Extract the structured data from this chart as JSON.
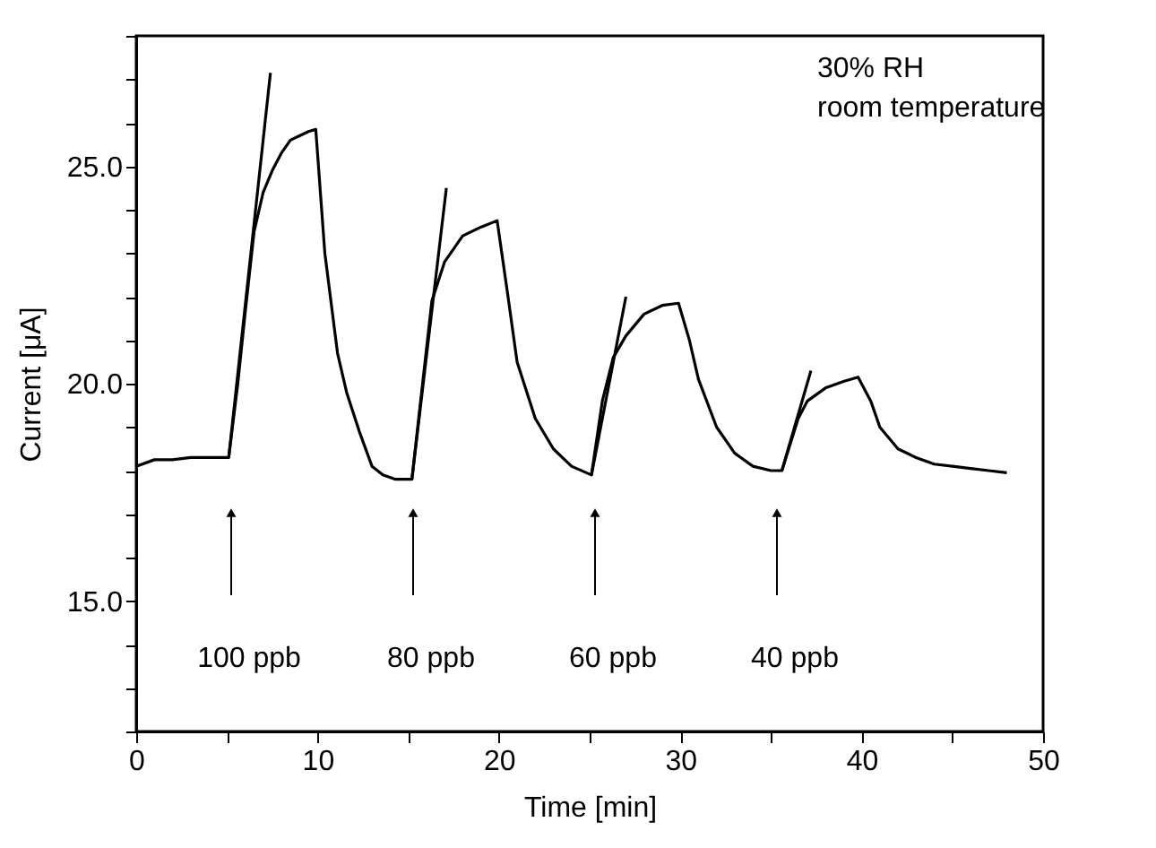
{
  "chart_data": {
    "type": "line",
    "xlabel": "Time [min]",
    "ylabel": "Current [μA]",
    "xlim": [
      0,
      50
    ],
    "ylim": [
      12,
      28
    ],
    "xticks": [
      0,
      {
        "value": 5,
        "label": null
      },
      10,
      {
        "value": 15,
        "label": null
      },
      20,
      {
        "value": 25,
        "label": null
      },
      30,
      {
        "value": 35,
        "label": null
      },
      40,
      {
        "value": 45,
        "label": null
      },
      50
    ],
    "yticks": [
      {
        "value": 12,
        "label": null
      },
      {
        "value": 13,
        "label": null
      },
      {
        "value": 14,
        "label": null
      },
      {
        "value": 15,
        "label": "15.0"
      },
      {
        "value": 16,
        "label": null
      },
      {
        "value": 17,
        "label": null
      },
      {
        "value": 18,
        "label": null
      },
      {
        "value": 19,
        "label": null
      },
      {
        "value": 20,
        "label": "20.0"
      },
      {
        "value": 21,
        "label": null
      },
      {
        "value": 22,
        "label": null
      },
      {
        "value": 23,
        "label": null
      },
      {
        "value": 24,
        "label": null
      },
      {
        "value": 25,
        "label": "25.0"
      },
      {
        "value": 26,
        "label": null
      },
      {
        "value": 27,
        "label": null
      },
      {
        "value": 28,
        "label": null
      }
    ],
    "grid": false,
    "marker": "none",
    "line_style": "solid",
    "series": [
      {
        "color": "#000000",
        "x": [
          0,
          1,
          2,
          3,
          4,
          5.1,
          5.6,
          6.0,
          6.5,
          7.0,
          7.5,
          8.0,
          8.5,
          9.0,
          9.5,
          9.9,
          10.4,
          11.1,
          11.6,
          12.3,
          13.0,
          13.6,
          14.3,
          15.2,
          15.6,
          16.3,
          17.0,
          18.0,
          19.0,
          19.9,
          20.5,
          21.0,
          22.0,
          23.0,
          24.0,
          25.1,
          25.7,
          26.3,
          27.0,
          28.0,
          29.0,
          29.9,
          30.5,
          31.0,
          32.0,
          33.0,
          34.0,
          35.0,
          35.6,
          36.5,
          37.0,
          38.0,
          39.0,
          39.8,
          40.5,
          41.0,
          42.0,
          43.0,
          44.0,
          45.0,
          46.0,
          47.0,
          48.0
        ],
        "values": [
          18.1,
          18.25,
          18.25,
          18.3,
          18.3,
          18.3,
          20.0,
          21.6,
          23.5,
          24.4,
          24.9,
          25.3,
          25.6,
          25.7,
          25.8,
          25.85,
          23.0,
          20.7,
          19.8,
          18.9,
          18.1,
          17.9,
          17.8,
          17.8,
          19.3,
          21.9,
          22.8,
          23.4,
          23.6,
          23.75,
          22.0,
          20.5,
          19.2,
          18.5,
          18.1,
          17.9,
          19.6,
          20.6,
          21.1,
          21.6,
          21.8,
          21.85,
          21.0,
          20.1,
          19.0,
          18.4,
          18.1,
          18.0,
          18.0,
          19.2,
          19.6,
          19.9,
          20.05,
          20.15,
          19.6,
          19.0,
          18.5,
          18.3,
          18.15,
          18.1,
          18.05,
          18.0,
          17.95
        ]
      },
      {
        "type": "line",
        "color": "#000000",
        "x": [
          5.1,
          7.4
        ],
        "values": [
          18.3,
          27.15
        ]
      },
      {
        "type": "line",
        "color": "#000000",
        "x": [
          15.2,
          17.1
        ],
        "values": [
          17.8,
          24.5
        ]
      },
      {
        "type": "line",
        "color": "#000000",
        "x": [
          25.1,
          27.0
        ],
        "values": [
          17.9,
          22.0
        ]
      },
      {
        "type": "line",
        "color": "#000000",
        "x": [
          35.6,
          37.2
        ],
        "values": [
          18.0,
          20.3
        ]
      }
    ],
    "annotations": [
      "30% RH",
      "room temperature",
      "100 ppb",
      "80 ppb",
      "60 ppb",
      "40 ppb"
    ]
  }
}
